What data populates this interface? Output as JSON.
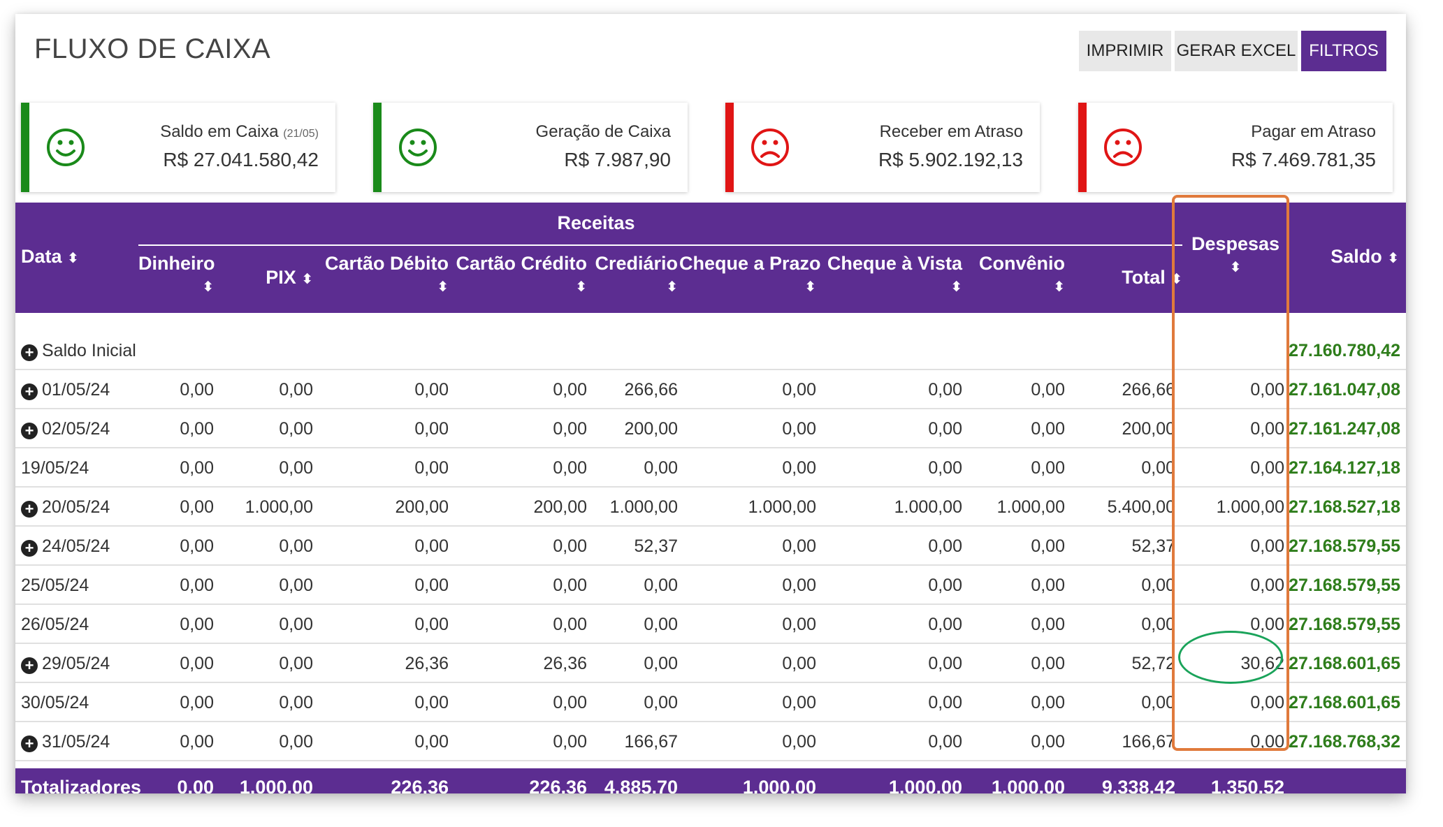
{
  "header": {
    "title": "FLUXO DE CAIXA",
    "buttons": {
      "print": "IMPRIMIR",
      "excel": "GERAR EXCEL",
      "filters": "FILTROS"
    }
  },
  "cards": [
    {
      "label": "Saldo em Caixa",
      "note": "(21/05)",
      "value": "R$ 27.041.580,42",
      "status": "happy",
      "color": "#1a8a1a"
    },
    {
      "label": "Geração de Caixa",
      "note": "",
      "value": "R$ 7.987,90",
      "status": "happy",
      "color": "#1a8a1a"
    },
    {
      "label": "Receber em Atraso",
      "note": "",
      "value": "R$ 5.902.192,13",
      "status": "sad",
      "color": "#e01515"
    },
    {
      "label": "Pagar em Atraso",
      "note": "",
      "value": "R$ 7.469.781,35",
      "status": "sad",
      "color": "#e01515"
    }
  ],
  "table": {
    "group_receitas": "Receitas",
    "headers": {
      "data": "Data",
      "dinheiro": "Dinheiro",
      "pix": "PIX",
      "debito": "Cartão Débito",
      "credito": "Cartão Crédito",
      "crediario": "Crediário",
      "cheque_prazo": "Cheque a Prazo",
      "cheque_vista": "Cheque à Vista",
      "convenio": "Convênio",
      "total": "Total",
      "despesas": "Despesas",
      "saldo": "Saldo"
    },
    "sort_icon": "sort-icon",
    "rows": [
      {
        "expand": true,
        "date": "Saldo Inicial",
        "values": [
          "",
          "",
          "",
          "",
          "",
          "",
          "",
          "",
          "",
          ""
        ],
        "saldo": "27.160.780,42"
      },
      {
        "expand": true,
        "date": "01/05/24",
        "values": [
          "0,00",
          "0,00",
          "0,00",
          "0,00",
          "266,66",
          "0,00",
          "0,00",
          "0,00",
          "266,66",
          "0,00"
        ],
        "saldo": "27.161.047,08"
      },
      {
        "expand": true,
        "date": "02/05/24",
        "values": [
          "0,00",
          "0,00",
          "0,00",
          "0,00",
          "200,00",
          "0,00",
          "0,00",
          "0,00",
          "200,00",
          "0,00"
        ],
        "saldo": "27.161.247,08"
      },
      {
        "expand": false,
        "date": "19/05/24",
        "values": [
          "0,00",
          "0,00",
          "0,00",
          "0,00",
          "0,00",
          "0,00",
          "0,00",
          "0,00",
          "0,00",
          "0,00"
        ],
        "saldo": "27.164.127,18"
      },
      {
        "expand": true,
        "date": "20/05/24",
        "values": [
          "0,00",
          "1.000,00",
          "200,00",
          "200,00",
          "1.000,00",
          "1.000,00",
          "1.000,00",
          "1.000,00",
          "5.400,00",
          "1.000,00"
        ],
        "saldo": "27.168.527,18"
      },
      {
        "expand": true,
        "date": "24/05/24",
        "values": [
          "0,00",
          "0,00",
          "0,00",
          "0,00",
          "52,37",
          "0,00",
          "0,00",
          "0,00",
          "52,37",
          "0,00"
        ],
        "saldo": "27.168.579,55"
      },
      {
        "expand": false,
        "date": "25/05/24",
        "values": [
          "0,00",
          "0,00",
          "0,00",
          "0,00",
          "0,00",
          "0,00",
          "0,00",
          "0,00",
          "0,00",
          "0,00"
        ],
        "saldo": "27.168.579,55"
      },
      {
        "expand": false,
        "date": "26/05/24",
        "values": [
          "0,00",
          "0,00",
          "0,00",
          "0,00",
          "0,00",
          "0,00",
          "0,00",
          "0,00",
          "0,00",
          "0,00"
        ],
        "saldo": "27.168.579,55"
      },
      {
        "expand": true,
        "date": "29/05/24",
        "values": [
          "0,00",
          "0,00",
          "26,36",
          "26,36",
          "0,00",
          "0,00",
          "0,00",
          "0,00",
          "52,72",
          "30,62"
        ],
        "saldo": "27.168.601,65"
      },
      {
        "expand": false,
        "date": "30/05/24",
        "values": [
          "0,00",
          "0,00",
          "0,00",
          "0,00",
          "0,00",
          "0,00",
          "0,00",
          "0,00",
          "0,00",
          "0,00"
        ],
        "saldo": "27.168.601,65"
      },
      {
        "expand": true,
        "date": "31/05/24",
        "values": [
          "0,00",
          "0,00",
          "0,00",
          "0,00",
          "166,67",
          "0,00",
          "0,00",
          "0,00",
          "166,67",
          "0,00"
        ],
        "saldo": "27.168.768,32"
      }
    ],
    "footer": {
      "label": "Totalizadores",
      "values": [
        "0,00",
        "1.000,00",
        "226,36",
        "226,36",
        "4.885,70",
        "1.000,00",
        "1.000,00",
        "1.000,00",
        "9.338,42",
        "1.350,52"
      ]
    }
  },
  "colors": {
    "brand_purple": "#5c2d91",
    "saldo_green": "#2e7d1b",
    "annotation_orange": "#e07a3c",
    "annotation_green": "#1aa35a"
  }
}
